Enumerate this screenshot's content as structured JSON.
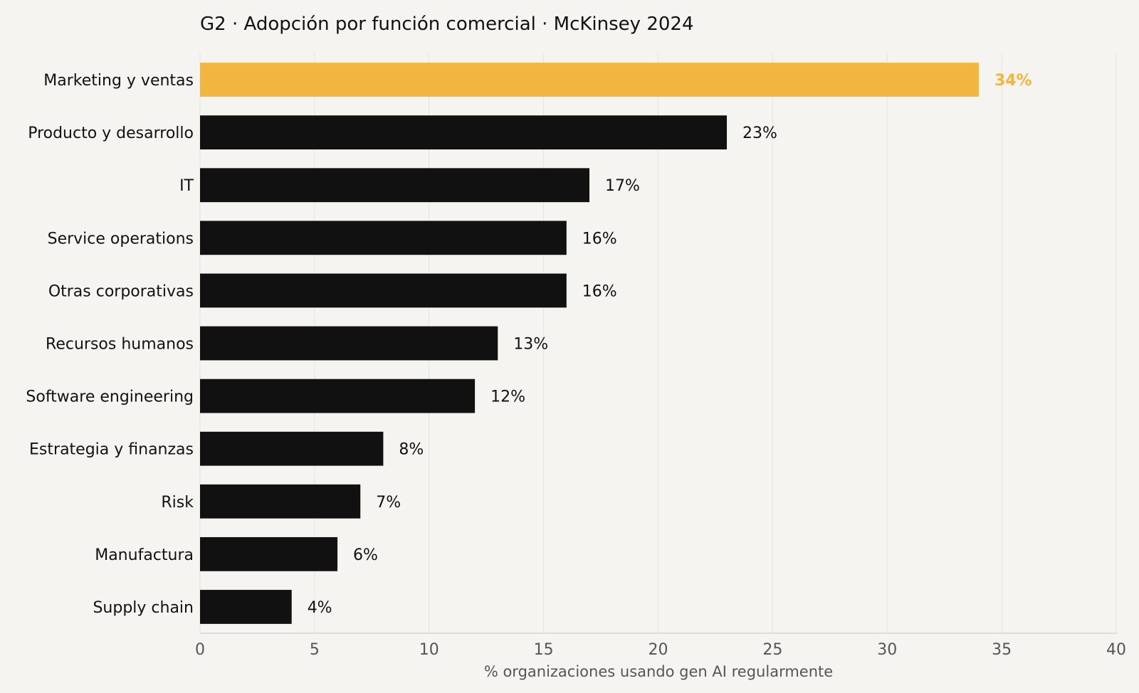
{
  "chart_data": {
    "type": "bar",
    "orientation": "horizontal",
    "title": "G2 · Adopción por función comercial · McKinsey 2024",
    "xlabel": "% organizaciones usando gen AI regularmente",
    "ylabel": "",
    "xlim": [
      0,
      40
    ],
    "xticks": [
      "0",
      "5",
      "10",
      "15",
      "20",
      "25",
      "30",
      "35",
      "40"
    ],
    "grid": "vertical",
    "legend": "none",
    "categories": [
      "Marketing y ventas",
      "Producto y desarrollo",
      "IT",
      "Service operations",
      "Otras corporativas",
      "Recursos humanos",
      "Software engineering",
      "Estrategia y finanzas",
      "Risk",
      "Manufactura",
      "Supply chain"
    ],
    "values": [
      34,
      23,
      17,
      16,
      16,
      13,
      12,
      8,
      7,
      6,
      4
    ],
    "data_labels": [
      "34%",
      "23%",
      "17%",
      "16%",
      "16%",
      "13%",
      "12%",
      "8%",
      "7%",
      "6%",
      "4%"
    ],
    "highlight_index": 0,
    "colors": {
      "bar": "#111111",
      "highlight": "#f2b53f",
      "background": "#f5f4f0",
      "grid": "#e4e3de",
      "axis": "#d6d5cf"
    }
  }
}
